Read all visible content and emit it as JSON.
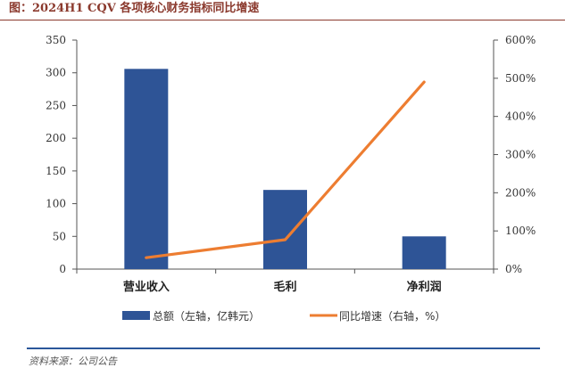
{
  "title": "图：2024H1 CQV 各项核心财务指标同比增速",
  "source": "资料来源：公司公告",
  "colors": {
    "bar": "#2E5496",
    "line": "#ED7D31",
    "title": "#8B3A2E",
    "rule": "#2B579A"
  },
  "chart_data": {
    "type": "bar",
    "categories": [
      "营业收入",
      "毛利",
      "净利润"
    ],
    "series": [
      {
        "name": "总额（左轴，亿韩元）",
        "type": "bar",
        "axis": "left",
        "values": [
          306,
          121,
          50
        ]
      },
      {
        "name": "同比增速（右轴，%）",
        "type": "line",
        "axis": "right",
        "values": [
          30,
          77,
          490
        ]
      }
    ],
    "left_axis": {
      "min": 0,
      "max": 350,
      "ticks": [
        "0",
        "50",
        "100",
        "150",
        "200",
        "250",
        "300",
        "350"
      ]
    },
    "right_axis": {
      "min": 0,
      "max": 600,
      "ticks": [
        "0%",
        "100%",
        "200%",
        "300%",
        "400%",
        "500%",
        "600%"
      ]
    },
    "grid": false,
    "legend_position": "bottom"
  }
}
